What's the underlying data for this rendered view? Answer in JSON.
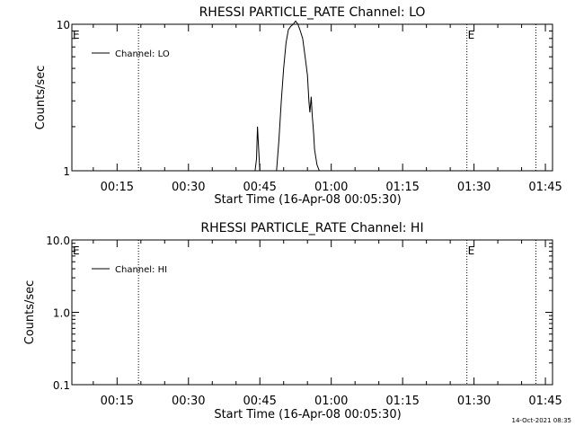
{
  "chart_data": [
    {
      "type": "line",
      "title": "RHESSI PARTICLE_RATE Channel: LO",
      "xlabel": "Start Time (16-Apr-08 00:05:30)",
      "ylabel": "Counts/sec",
      "yscale": "log",
      "ylim": [
        1,
        10
      ],
      "yticks": [
        1,
        10
      ],
      "ytick_labels": [
        "1",
        "10"
      ],
      "xlim": [
        5.5,
        106.5
      ],
      "xticks": [
        15,
        30,
        45,
        60,
        75,
        90,
        105
      ],
      "xtick_labels": [
        "00:15",
        "00:30",
        "00:45",
        "01:00",
        "01:15",
        "01:30",
        "01:45"
      ],
      "vlines": [
        19.5,
        88.5,
        103
      ],
      "markers": [
        {
          "label": "E",
          "x": 5.5
        },
        {
          "label": "E",
          "x": 88.5
        }
      ],
      "series": [
        {
          "name": "Channel: LO",
          "x": [
            44.0,
            44.3,
            44.5,
            44.8,
            45.0,
            45.3,
            45.5,
            45.8,
            48.5,
            49.0,
            49.5,
            50.0,
            50.5,
            51.0,
            51.5,
            52.0,
            52.5,
            53.0,
            53.5,
            54.0,
            54.5,
            55.0,
            55.3,
            55.5,
            55.8,
            56.0,
            56.3,
            56.5,
            57.0,
            57.5,
            58.0
          ],
          "y": [
            1,
            1.2,
            2.0,
            1.3,
            1.0,
            1.0,
            1.0,
            1.0,
            1.0,
            1.6,
            3.0,
            5.0,
            7.5,
            9.2,
            9.7,
            10.0,
            10.5,
            10.0,
            9.0,
            8.0,
            6.0,
            4.5,
            3.0,
            2.5,
            3.2,
            2.4,
            1.8,
            1.4,
            1.1,
            1.0,
            1.0
          ]
        }
      ]
    },
    {
      "type": "line",
      "title": "RHESSI PARTICLE_RATE Channel: HI",
      "xlabel": "Start Time (16-Apr-08 00:05:30)",
      "ylabel": "Counts/sec",
      "yscale": "log",
      "ylim": [
        0.1,
        10
      ],
      "yticks": [
        0.1,
        1,
        10
      ],
      "ytick_labels": [
        "0.1",
        "1.0",
        "10.0"
      ],
      "xlim": [
        5.5,
        106.5
      ],
      "xticks": [
        15,
        30,
        45,
        60,
        75,
        90,
        105
      ],
      "xtick_labels": [
        "00:15",
        "00:30",
        "00:45",
        "01:00",
        "01:15",
        "01:30",
        "01:45"
      ],
      "vlines": [
        19.5,
        88.5,
        103
      ],
      "markers": [
        {
          "label": "E",
          "x": 5.5
        },
        {
          "label": "E",
          "x": 88.5
        }
      ],
      "series": [
        {
          "name": "Channel: HI",
          "x": [],
          "y": []
        }
      ]
    }
  ],
  "footer": {
    "timestamp": "14-Oct-2021 08:35"
  }
}
